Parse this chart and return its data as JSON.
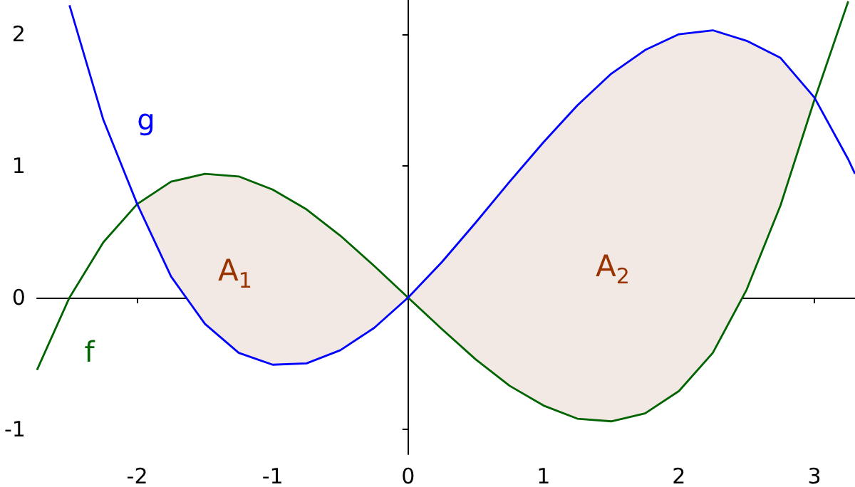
{
  "chart_data": {
    "type": "line",
    "xlim": [
      -2.74,
      3.3
    ],
    "ylim": [
      -1.19,
      2.26
    ],
    "xticks": [
      -2,
      -1,
      0,
      1,
      2,
      3
    ],
    "yticks": [
      -1,
      0,
      1,
      2
    ],
    "legend": false,
    "marker": "none",
    "line_style": "solid",
    "annotations": [
      "A$_{1}$",
      "A$_{2}$"
    ],
    "series": [
      {
        "name": "f",
        "color": "#006400",
        "x": [
          -2.74,
          -2.5,
          -2.25,
          -2,
          -1.75,
          -1.5,
          -1.25,
          -1,
          -0.75,
          -0.5,
          -0.25,
          0,
          0.25,
          0.5,
          0.75,
          1,
          1.25,
          1.5,
          1.75,
          2,
          2.25,
          2.5,
          2.75,
          3,
          3.25
        ],
        "values": [
          -0.55,
          0,
          0.42,
          0.71,
          0.88,
          0.94,
          0.92,
          0.82,
          0.67,
          0.47,
          0.24,
          0,
          -0.24,
          -0.47,
          -0.67,
          -0.82,
          -0.92,
          -0.94,
          -0.88,
          -0.71,
          -0.42,
          0.06,
          0.7,
          1.5,
          2.25
        ]
      },
      {
        "name": "g",
        "color": "#0000ff",
        "x": [
          -2.5,
          -2.25,
          -2,
          -1.75,
          -1.5,
          -1.25,
          -1,
          -0.75,
          -0.5,
          -0.25,
          0,
          0.25,
          0.5,
          0.75,
          1,
          1.25,
          1.5,
          1.75,
          2,
          2.25,
          2.5,
          2.75,
          3,
          3.25,
          3.3
        ],
        "values": [
          2.22,
          1.35,
          0.71,
          0.16,
          -0.2,
          -0.42,
          -0.51,
          -0.5,
          -0.4,
          -0.23,
          0,
          0.27,
          0.57,
          0.88,
          1.18,
          1.46,
          1.7,
          1.88,
          2,
          2.03,
          1.95,
          1.82,
          1.52,
          1.05,
          0.94
        ],
        "lower": [
          null,
          null,
          0.71,
          0.16,
          -0.2,
          -0.42,
          -0.51,
          -0.5,
          -0.4,
          -0.23,
          0,
          -0.24,
          -0.47,
          -0.67,
          -0.82,
          -0.92,
          -0.94,
          -0.88,
          -0.71,
          -0.42,
          0.06,
          0.7,
          1.5,
          null,
          null
        ],
        "upper": [
          null,
          null,
          0.71,
          0.88,
          0.94,
          0.92,
          0.82,
          0.67,
          0.47,
          0.24,
          0,
          0.27,
          0.57,
          0.88,
          1.18,
          1.46,
          1.7,
          1.88,
          2,
          2.03,
          1.95,
          1.82,
          1.52,
          null,
          null
        ]
      }
    ]
  }
}
